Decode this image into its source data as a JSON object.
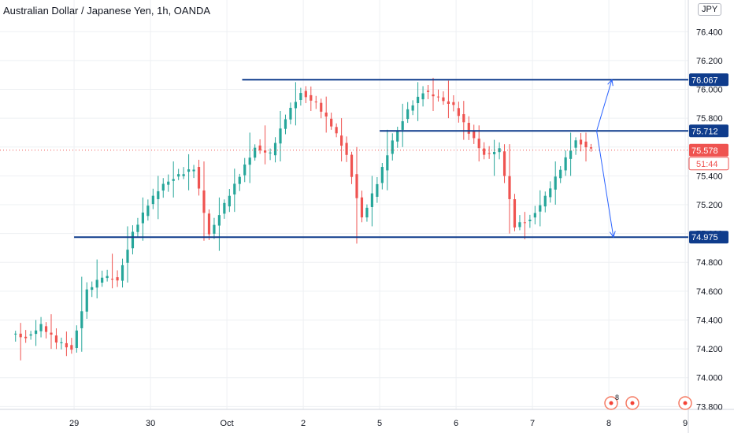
{
  "header": {
    "title": "Australian Dollar / Japanese Yen, 1h, OANDA",
    "currency": "JPY"
  },
  "colors": {
    "up": "#26a69a",
    "down": "#ef5350",
    "level": "#0f3c8c",
    "arrow": "#2962ff",
    "grid": "#eef0f3",
    "last_price": "#ef5350",
    "countdown": "#ef5350"
  },
  "chart_data": {
    "type": "candlestick",
    "symbol": "Australian Dollar / Japanese Yen",
    "interval": "1h",
    "source": "OANDA",
    "ylim": [
      73.78,
      76.62
    ],
    "y_ticks": [
      "73.800",
      "74.000",
      "74.200",
      "74.400",
      "74.600",
      "74.800",
      "75.000",
      "75.200",
      "75.400",
      "75.600",
      "75.800",
      "76.000",
      "76.200",
      "76.400"
    ],
    "y_tick_values": [
      73.8,
      74.0,
      74.2,
      74.4,
      74.6,
      74.8,
      75.0,
      75.2,
      75.4,
      75.6,
      75.8,
      76.0,
      76.2,
      76.4
    ],
    "x_ticks": [
      "29",
      "30",
      "Oct",
      "2",
      "5",
      "6",
      "7",
      "8",
      "9"
    ],
    "x_tick_positions": [
      4,
      9,
      14,
      19,
      24,
      29,
      34,
      39,
      44
    ],
    "x_range": [
      -0.85,
      44.2
    ],
    "grid": true,
    "price_levels": [
      {
        "value": 76.067,
        "label": "76.067",
        "from": 15.0
      },
      {
        "value": 75.712,
        "label": "75.712",
        "from": 24.0
      },
      {
        "value": 74.975,
        "label": "74.975",
        "from": 4.0
      }
    ],
    "last_price": {
      "value": 75.578,
      "label": "75.578",
      "countdown": "51:44"
    },
    "projection_arrows": [
      {
        "from": [
          38.2,
          75.712
        ],
        "to": [
          39.2,
          76.067
        ]
      },
      {
        "from": [
          38.2,
          75.712
        ],
        "to": [
          39.3,
          74.975
        ]
      }
    ],
    "candles_per_day": 5,
    "candles": [
      [
        74.3,
        74.38,
        74.12,
        74.28
      ],
      [
        74.28,
        74.4,
        74.22,
        74.36
      ],
      [
        74.36,
        74.44,
        74.2,
        74.25
      ],
      [
        74.25,
        74.32,
        74.15,
        74.2
      ],
      [
        74.2,
        74.7,
        74.18,
        74.6
      ],
      [
        74.6,
        74.82,
        74.55,
        74.7
      ],
      [
        74.7,
        74.86,
        74.62,
        74.68
      ],
      [
        74.68,
        75.05,
        74.66,
        75.0
      ],
      [
        75.0,
        75.25,
        74.95,
        75.2
      ],
      [
        75.2,
        75.4,
        75.1,
        75.35
      ],
      [
        75.35,
        75.5,
        75.25,
        75.4
      ],
      [
        75.4,
        75.55,
        75.3,
        75.45
      ],
      [
        75.45,
        75.5,
        74.95,
        75.0
      ],
      [
        75.0,
        75.25,
        74.88,
        75.2
      ],
      [
        75.2,
        75.45,
        75.15,
        75.4
      ],
      [
        75.4,
        75.7,
        75.35,
        75.6
      ],
      [
        75.6,
        75.75,
        75.48,
        75.55
      ],
      [
        75.55,
        75.85,
        75.5,
        75.8
      ],
      [
        75.8,
        76.05,
        75.75,
        75.98
      ],
      [
        75.98,
        76.02,
        75.85,
        75.9
      ],
      [
        75.9,
        75.95,
        75.7,
        75.75
      ],
      [
        75.75,
        75.8,
        75.5,
        75.55
      ],
      [
        75.55,
        75.6,
        74.93,
        75.1
      ],
      [
        75.1,
        75.4,
        75.05,
        75.35
      ],
      [
        75.35,
        75.72,
        75.3,
        75.65
      ],
      [
        75.65,
        75.9,
        75.6,
        75.85
      ],
      [
        75.85,
        76.05,
        75.78,
        75.98
      ],
      [
        75.98,
        76.08,
        75.85,
        75.95
      ],
      [
        75.95,
        76.06,
        75.8,
        75.88
      ],
      [
        75.88,
        75.92,
        75.65,
        75.7
      ],
      [
        75.7,
        75.75,
        75.5,
        75.55
      ],
      [
        75.55,
        75.65,
        75.4,
        75.58
      ],
      [
        75.58,
        75.62,
        75.0,
        75.05
      ],
      [
        75.05,
        75.15,
        74.96,
        75.1
      ],
      [
        75.1,
        75.3,
        75.05,
        75.25
      ],
      [
        75.25,
        75.5,
        75.2,
        75.45
      ],
      [
        75.45,
        75.7,
        75.4,
        75.65
      ],
      [
        75.65,
        75.7,
        75.5,
        75.578
      ]
    ]
  },
  "markers": [
    {
      "id": "event-marker-1",
      "badge": "8"
    },
    {
      "id": "event-marker-2",
      "badge": ""
    },
    {
      "id": "event-marker-3",
      "badge": ""
    }
  ]
}
